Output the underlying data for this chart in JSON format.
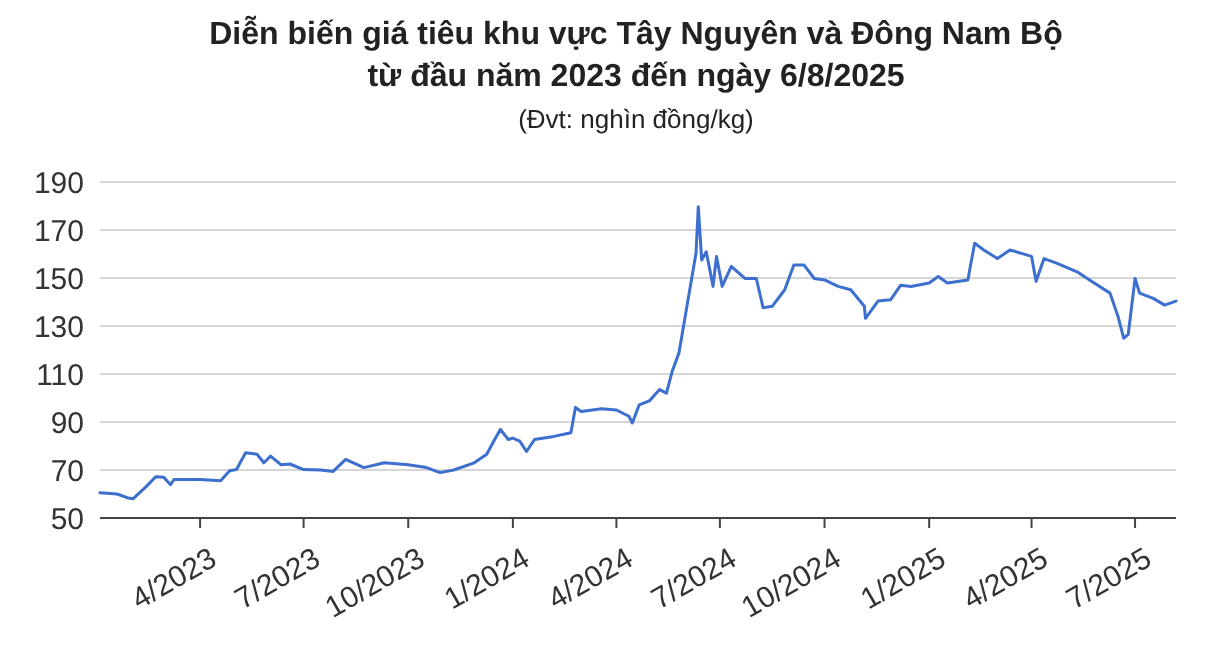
{
  "chart_data": {
    "type": "line",
    "title": "Diễn biến giá tiêu khu vực Tây Nguyên và Đông Nam Bộ\ntừ đầu năm 2023 đến ngày 6/8/2025",
    "subtitle": "(Đvt: nghìn đồng/kg)",
    "x": [
      "2023-01-03",
      "2023-01-18",
      "2023-01-28",
      "2023-02-01",
      "2023-02-13",
      "2023-02-21",
      "2023-02-28",
      "2023-03-06",
      "2023-03-09",
      "2023-04-01",
      "2023-04-19",
      "2023-04-27",
      "2023-05-03",
      "2023-05-11",
      "2023-05-21",
      "2023-05-27",
      "2023-06-02",
      "2023-06-11",
      "2023-06-19",
      "2023-07-01",
      "2023-07-16",
      "2023-07-27",
      "2023-08-07",
      "2023-08-23",
      "2023-09-10",
      "2023-10-01",
      "2023-10-17",
      "2023-10-29",
      "2023-11-10",
      "2023-11-28",
      "2023-12-09",
      "2023-12-16",
      "2023-12-21",
      "2023-12-28",
      "2024-01-01",
      "2024-01-07",
      "2024-01-13",
      "2024-01-20",
      "2024-02-06",
      "2024-02-21",
      "2024-02-25",
      "2024-03-01",
      "2024-03-19",
      "2024-04-01",
      "2024-04-12",
      "2024-04-15",
      "2024-04-21",
      "2024-04-30",
      "2024-05-09",
      "2024-05-15",
      "2024-05-20",
      "2024-05-26",
      "2024-05-31",
      "2024-06-04",
      "2024-06-10",
      "2024-06-12",
      "2024-06-15",
      "2024-06-19",
      "2024-06-25",
      "2024-06-28",
      "2024-07-03",
      "2024-07-11",
      "2024-07-23",
      "2024-08-02",
      "2024-08-08",
      "2024-08-16",
      "2024-08-27",
      "2024-09-04",
      "2024-09-13",
      "2024-09-22",
      "2024-10-01",
      "2024-10-13",
      "2024-10-24",
      "2024-11-05",
      "2024-11-06",
      "2024-11-17",
      "2024-11-28",
      "2024-12-07",
      "2024-12-16",
      "2025-01-01",
      "2025-01-09",
      "2025-01-17",
      "2025-02-04",
      "2025-02-10",
      "2025-02-18",
      "2025-03-02",
      "2025-03-13",
      "2025-04-01",
      "2025-04-05",
      "2025-04-12",
      "2025-04-23",
      "2025-05-11",
      "2025-05-22",
      "2025-06-09",
      "2025-06-16",
      "2025-06-21",
      "2025-06-25",
      "2025-07-01",
      "2025-07-05",
      "2025-07-17",
      "2025-07-27",
      "2025-08-06"
    ],
    "series": [
      {
        "color": "#3d6fce",
        "values": [
          60.5,
          60,
          58.3,
          58,
          63.3,
          67.2,
          67,
          63.9,
          66,
          66,
          65.5,
          69.7,
          70.2,
          77.2,
          76.6,
          73,
          75.8,
          72.2,
          72.5,
          70.2,
          70,
          69.4,
          74.4,
          71,
          73,
          72.2,
          71,
          68.9,
          70,
          73,
          76.6,
          82.7,
          86.9,
          82.7,
          83.3,
          82,
          77.7,
          82.7,
          84,
          85.5,
          96,
          94.4,
          95.5,
          95,
          92.4,
          89.6,
          97.1,
          98.8,
          103.5,
          102,
          111,
          118.8,
          132.6,
          143.7,
          160.3,
          179.7,
          157.5,
          160.9,
          146.5,
          159,
          146.5,
          154.8,
          149.8,
          149.8,
          137.6,
          138.2,
          145.1,
          155.4,
          155.4,
          149.8,
          149.2,
          146.5,
          145.1,
          138.2,
          133.2,
          140.4,
          140.9,
          147,
          146.5,
          147.9,
          150.6,
          147.9,
          149.2,
          164.5,
          161.7,
          158.1,
          161.7,
          159,
          148.6,
          158.1,
          156.2,
          152.6,
          149.2,
          143.7,
          134,
          124.9,
          126.5,
          149.8,
          143.7,
          141.5,
          138.7,
          140.4
        ]
      }
    ],
    "xlim": [
      "2023-01-03",
      "2025-08-06"
    ],
    "xticks": [
      {
        "value": "2023-04-01",
        "label": "4/2023"
      },
      {
        "value": "2023-07-01",
        "label": "7/2023"
      },
      {
        "value": "2023-10-01",
        "label": "10/2023"
      },
      {
        "value": "2024-01-01",
        "label": "1/2024"
      },
      {
        "value": "2024-04-01",
        "label": "4/2024"
      },
      {
        "value": "2024-07-01",
        "label": "7/2024"
      },
      {
        "value": "2024-10-01",
        "label": "10/2024"
      },
      {
        "value": "2025-01-01",
        "label": "1/2025"
      },
      {
        "value": "2025-04-01",
        "label": "4/2025"
      },
      {
        "value": "2025-07-01",
        "label": "7/2025"
      }
    ],
    "ylim": [
      50,
      190
    ],
    "yticks": [
      50,
      70,
      90,
      110,
      130,
      150,
      170,
      190
    ],
    "grid": "y"
  }
}
